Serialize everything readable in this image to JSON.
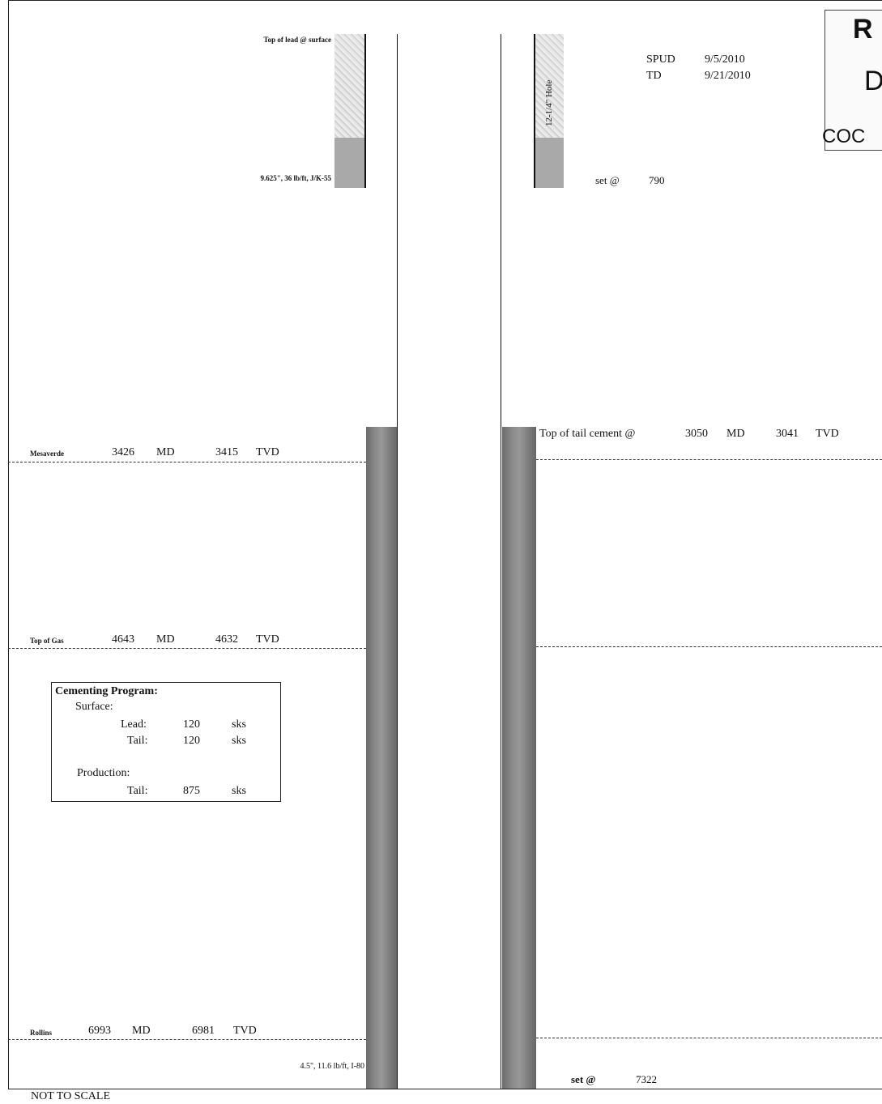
{
  "surface": {
    "top_of_lead": "Top of lead @ surface",
    "casing": "9.625\", 36 lb/ft, J/K-55",
    "hole": "12-1/4\" Hole",
    "set_label": "set @",
    "set_depth": "790"
  },
  "dates": {
    "spud_label": "SPUD",
    "spud_date": "9/5/2010",
    "td_label": "TD",
    "td_date": "9/21/2010"
  },
  "stamp": {
    "line1": "R",
    "line2": "D",
    "line3": "COC"
  },
  "tail_cement": {
    "label": "Top of tail cement @",
    "md": "3050",
    "md_unit": "MD",
    "tvd": "3041",
    "tvd_unit": "TVD"
  },
  "formations": [
    {
      "name": "Mesaverde",
      "md": "3426",
      "md_unit": "MD",
      "tvd": "3415",
      "tvd_unit": "TVD"
    },
    {
      "name": "Top of Gas",
      "md": "4643",
      "md_unit": "MD",
      "tvd": "4632",
      "tvd_unit": "TVD"
    },
    {
      "name": "Rollins",
      "md": "6993",
      "md_unit": "MD",
      "tvd": "6981",
      "tvd_unit": "TVD"
    }
  ],
  "cementing": {
    "title_a": "Cementing",
    "title_b": "Program:",
    "surface_label": "Surface:",
    "lead_label": "Lead:",
    "lead_value": "120",
    "lead_unit": "sks",
    "tail_label": "Tail:",
    "tail_value": "120",
    "tail_unit": "sks",
    "production_label": "Production:",
    "prod_tail_label": "Tail:",
    "prod_tail_value": "875",
    "prod_tail_unit": "sks"
  },
  "production": {
    "casing": "4.5\", 11.6 lb/ft, I-80",
    "set_label": "set @",
    "set_depth": "7322"
  },
  "footer": {
    "note": "NOT TO SCALE"
  }
}
